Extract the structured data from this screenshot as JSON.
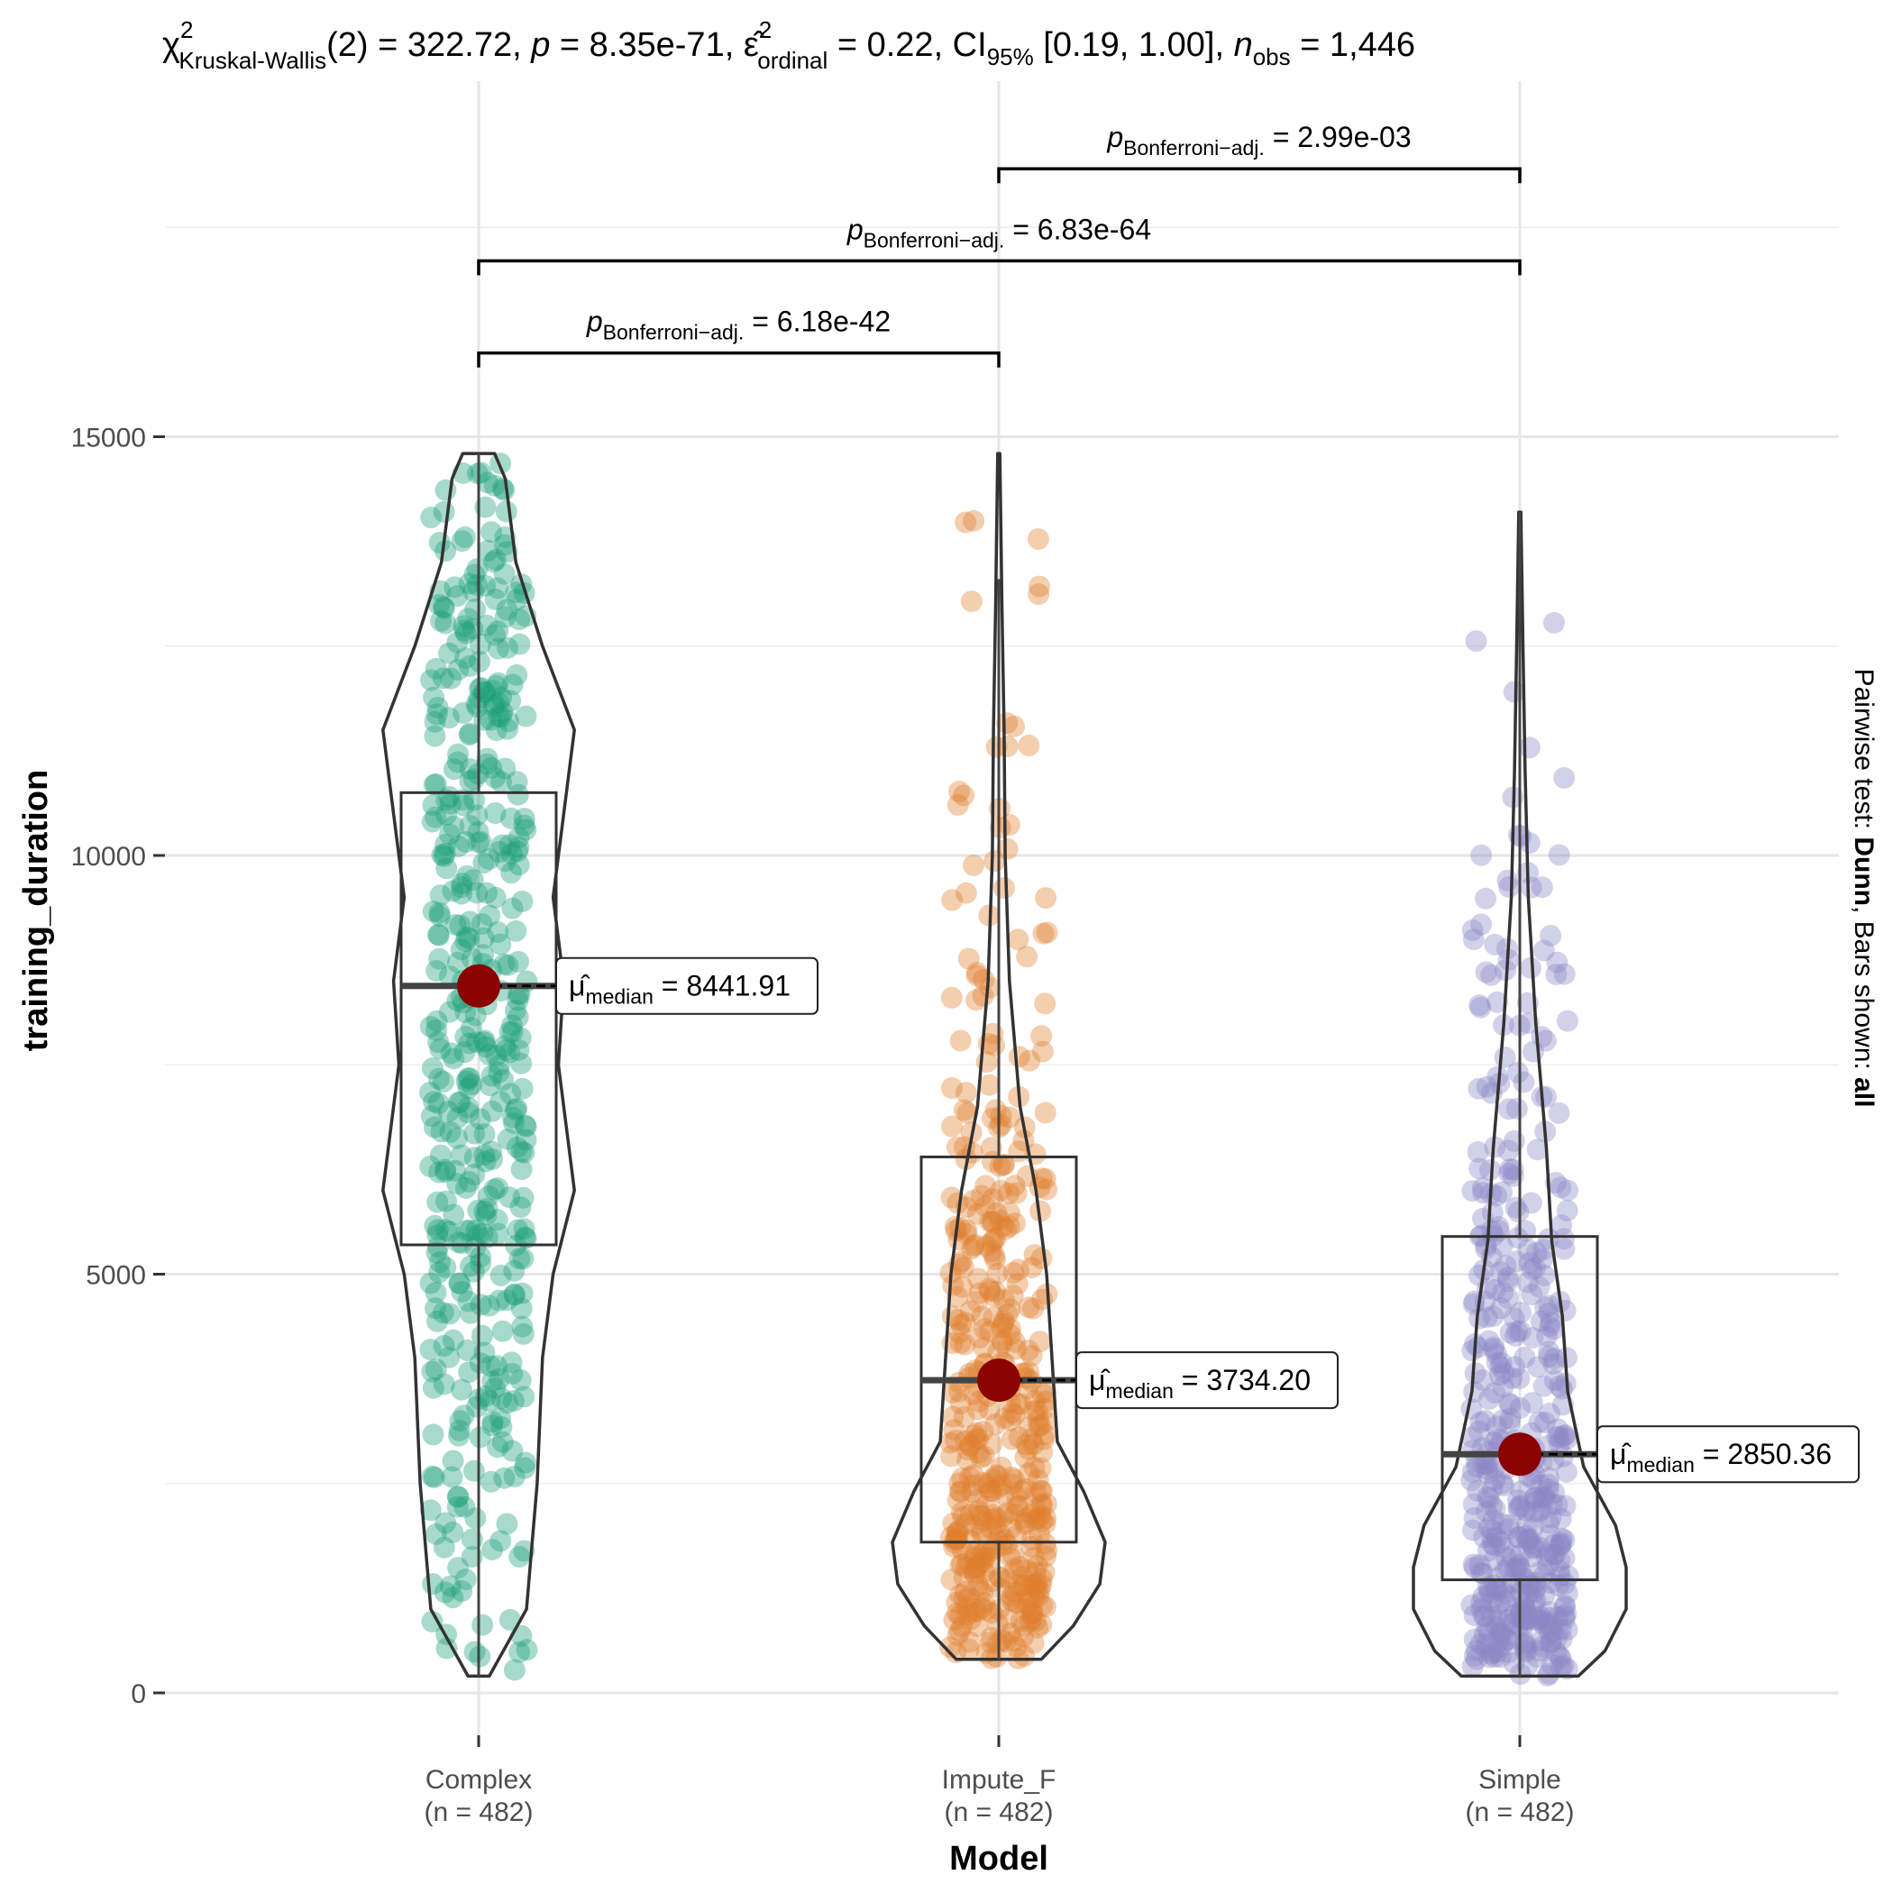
{
  "chart_data": {
    "type": "violin-box-scatter",
    "title": {
      "chi_sym": "χ",
      "chi_sup": "2",
      "chi_sub": "Kruskal-Wallis",
      "part1": "(2) = 322.72, ",
      "p_sym": "p",
      "part2": " = 8.35e-71, ",
      "eps_sym": "ε̂",
      "eps_sup": "2",
      "eps_sub": "ordinal",
      "part3": " = 0.22, CI",
      "ci_sub": "95%",
      "part4": " [0.19, 1.00], ",
      "n_sym": "n",
      "n_sub": "obs",
      "part5": " = 1,446"
    },
    "xlabel": "Model",
    "ylabel": "training_duration",
    "caption": {
      "prefix": "Pairwise test: ",
      "test": "Dunn",
      "middle": ", Bars shown: ",
      "bars": "all"
    },
    "ylim": [
      -900,
      18000
    ],
    "yticks": [
      0,
      5000,
      10000,
      15000
    ],
    "grid": true,
    "groups": [
      {
        "name": "Complex",
        "n_label": "(n = 482)",
        "color": "#1B9E77",
        "box": {
          "q1": 5350,
          "median": 8442,
          "q3": 10750,
          "lower": 200,
          "upper": 14800
        },
        "median_label": "8441.91",
        "violin": [
          [
            200,
            0.1
          ],
          [
            1000,
            0.45
          ],
          [
            2500,
            0.55
          ],
          [
            4000,
            0.6
          ],
          [
            5000,
            0.7
          ],
          [
            6000,
            0.9
          ],
          [
            7500,
            0.75
          ],
          [
            8500,
            0.8
          ],
          [
            9500,
            0.7
          ],
          [
            10500,
            0.8
          ],
          [
            11500,
            0.9
          ],
          [
            12500,
            0.6
          ],
          [
            13500,
            0.35
          ],
          [
            14500,
            0.25
          ],
          [
            14800,
            0.15
          ]
        ],
        "point_min": 200,
        "point_max": 14800,
        "mode": 9000
      },
      {
        "name": "Impute_F",
        "n_label": "(n = 482)",
        "color": "#E07F2E",
        "box": {
          "q1": 1800,
          "median": 3734,
          "q3": 6400,
          "lower": 400,
          "upper": 13300
        },
        "median_label": "3734.20",
        "violin": [
          [
            400,
            0.4
          ],
          [
            800,
            0.7
          ],
          [
            1300,
            0.95
          ],
          [
            1800,
            1.0
          ],
          [
            2400,
            0.8
          ],
          [
            3000,
            0.55
          ],
          [
            4000,
            0.5
          ],
          [
            5000,
            0.45
          ],
          [
            6000,
            0.35
          ],
          [
            7000,
            0.2
          ],
          [
            8500,
            0.1
          ],
          [
            10000,
            0.06
          ],
          [
            11500,
            0.05
          ],
          [
            13000,
            0.03
          ],
          [
            14800,
            0.01
          ]
        ],
        "point_min": 400,
        "point_max": 14900,
        "mode": 1600
      },
      {
        "name": "Simple",
        "n_label": "(n = 482)",
        "color": "#8B87C4",
        "box": {
          "q1": 1350,
          "median": 2850,
          "q3": 5450,
          "lower": 200,
          "upper": 14100
        },
        "median_label": "2850.36",
        "violin": [
          [
            200,
            0.55
          ],
          [
            500,
            0.8
          ],
          [
            1000,
            1.0
          ],
          [
            1500,
            1.0
          ],
          [
            2000,
            0.9
          ],
          [
            2700,
            0.6
          ],
          [
            3600,
            0.45
          ],
          [
            4500,
            0.4
          ],
          [
            5400,
            0.3
          ],
          [
            6500,
            0.25
          ],
          [
            8000,
            0.15
          ],
          [
            9500,
            0.08
          ],
          [
            11000,
            0.05
          ],
          [
            12500,
            0.03
          ],
          [
            14100,
            0.01
          ]
        ],
        "point_min": 200,
        "point_max": 14200,
        "mode": 1300
      }
    ],
    "median_label_prefix": {
      "mu": "μ̂",
      "sub": "median",
      "eq": " = "
    },
    "comparisons": [
      {
        "from": "Complex",
        "to": "Impute_F",
        "y": 16000,
        "p_sym": "p",
        "p_sub": "Bonferroni−adj.",
        "value": " = 6.18e-42"
      },
      {
        "from": "Complex",
        "to": "Simple",
        "y": 17100,
        "p_sym": "p",
        "p_sub": "Bonferroni−adj.",
        "value": " = 6.83e-64"
      },
      {
        "from": "Impute_F",
        "to": "Simple",
        "y": 18200,
        "p_sym": "p",
        "p_sub": "Bonferroni−adj.",
        "value": " = 2.99e-03"
      }
    ],
    "median_point_color": "#8B0000"
  }
}
